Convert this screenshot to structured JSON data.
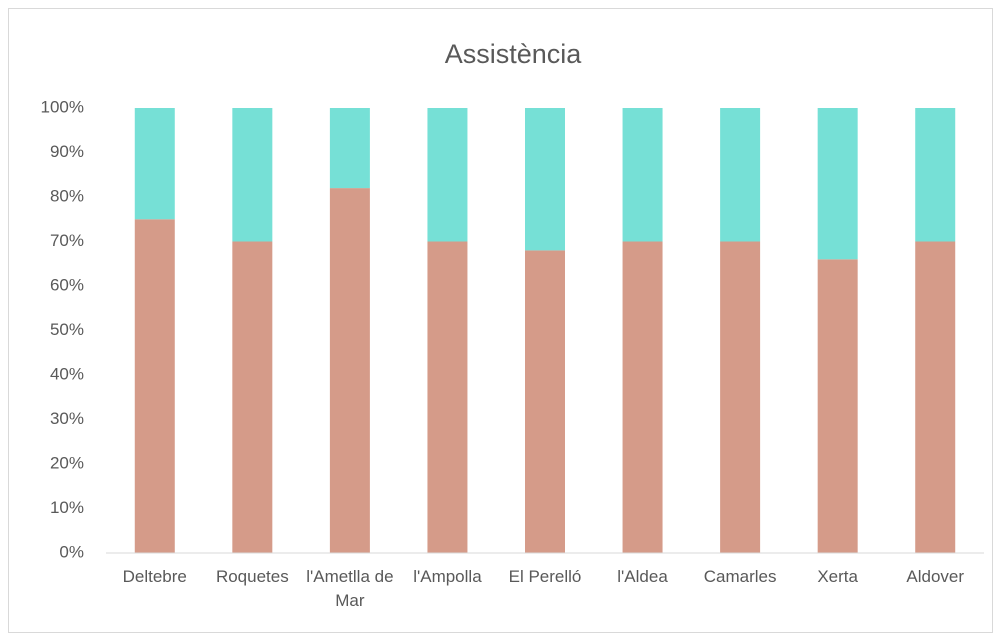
{
  "chart_data": {
    "type": "stacked_bar",
    "title": "Assistència",
    "categories": [
      "Deltebre",
      "Roquetes",
      "l'Ametlla de Mar",
      "l'Ampolla",
      "El Perelló",
      "l'Aldea",
      "Camarles",
      "Xerta",
      "Aldover"
    ],
    "series": [
      {
        "color": "#d59b89",
        "values": [
          75,
          70,
          82,
          70,
          68,
          70,
          70,
          66,
          70
        ]
      },
      {
        "color": "#76e0d6",
        "values": [
          25,
          30,
          18,
          30,
          32,
          30,
          30,
          34,
          30
        ]
      }
    ],
    "ylim": [
      0,
      100
    ],
    "yticks": [
      {
        "value": 0,
        "label": "0%"
      },
      {
        "value": 10,
        "label": "10%"
      },
      {
        "value": 20,
        "label": "20%"
      },
      {
        "value": 30,
        "label": "30%"
      },
      {
        "value": 40,
        "label": "40%"
      },
      {
        "value": 50,
        "label": "50%"
      },
      {
        "value": 60,
        "label": "60%"
      },
      {
        "value": 70,
        "label": "70%"
      },
      {
        "value": 80,
        "label": "80%"
      },
      {
        "value": 90,
        "label": "90%"
      },
      {
        "value": 100,
        "label": "100%"
      }
    ],
    "grid": false
  }
}
